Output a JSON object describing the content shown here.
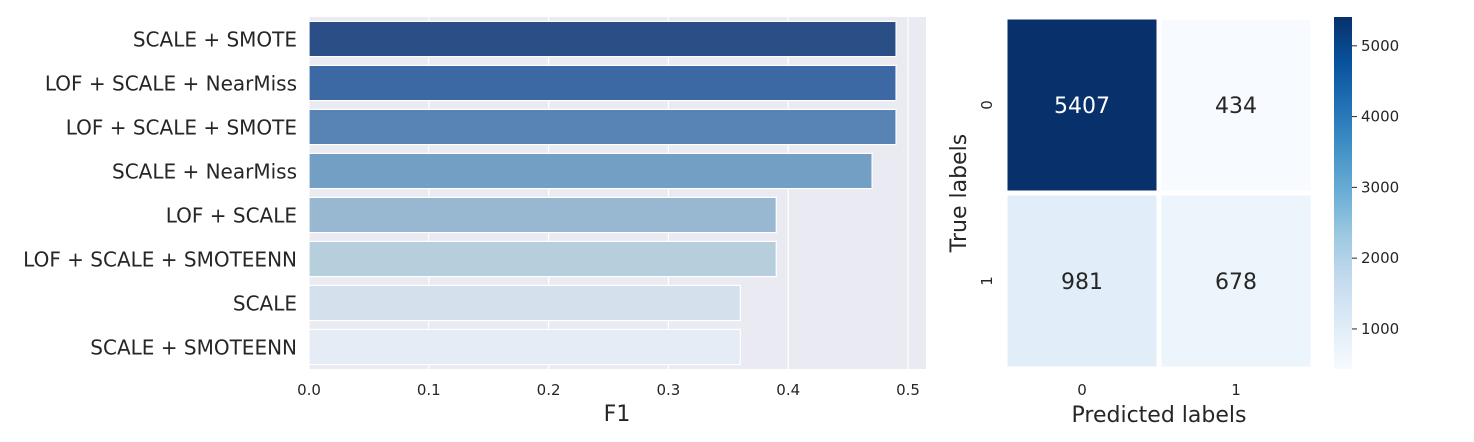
{
  "chart_data": [
    {
      "type": "bar",
      "orientation": "horizontal",
      "categories": [
        "SCALE + SMOTE",
        "LOF + SCALE + NearMiss",
        "LOF + SCALE + SMOTE",
        "SCALE + NearMiss",
        "LOF + SCALE",
        "LOF + SCALE + SMOTEENN",
        "SCALE",
        "SCALE + SMOTEENN"
      ],
      "values": [
        0.49,
        0.49,
        0.49,
        0.47,
        0.39,
        0.39,
        0.36,
        0.36
      ],
      "colors": [
        "#2a4f86",
        "#3c68a3",
        "#5784b2",
        "#749fc4",
        "#98b8d2",
        "#b7cedd",
        "#d4e0eb",
        "#e5ecf5"
      ],
      "xlabel": "F1",
      "ylabel": "",
      "xlim": [
        0,
        0.515
      ],
      "xticks": [
        0.0,
        0.1,
        0.2,
        0.3,
        0.4,
        0.5
      ],
      "xtick_labels": [
        "0.0",
        "0.1",
        "0.2",
        "0.3",
        "0.4",
        "0.5"
      ],
      "grid": true,
      "background": "#eaeaf2"
    },
    {
      "type": "heatmap",
      "rows": [
        "0",
        "1"
      ],
      "cols": [
        "0",
        "1"
      ],
      "values": [
        [
          5407,
          434
        ],
        [
          981,
          678
        ]
      ],
      "xlabel": "Predicted labels",
      "ylabel": "True labels",
      "colormap": "Blues",
      "vmin": 434,
      "vmax": 5407,
      "colorbar_ticks": [
        1000,
        2000,
        3000,
        4000,
        5000
      ],
      "colorbar_tick_labels": [
        "1000",
        "2000",
        "3000",
        "4000",
        "5000"
      ]
    }
  ]
}
